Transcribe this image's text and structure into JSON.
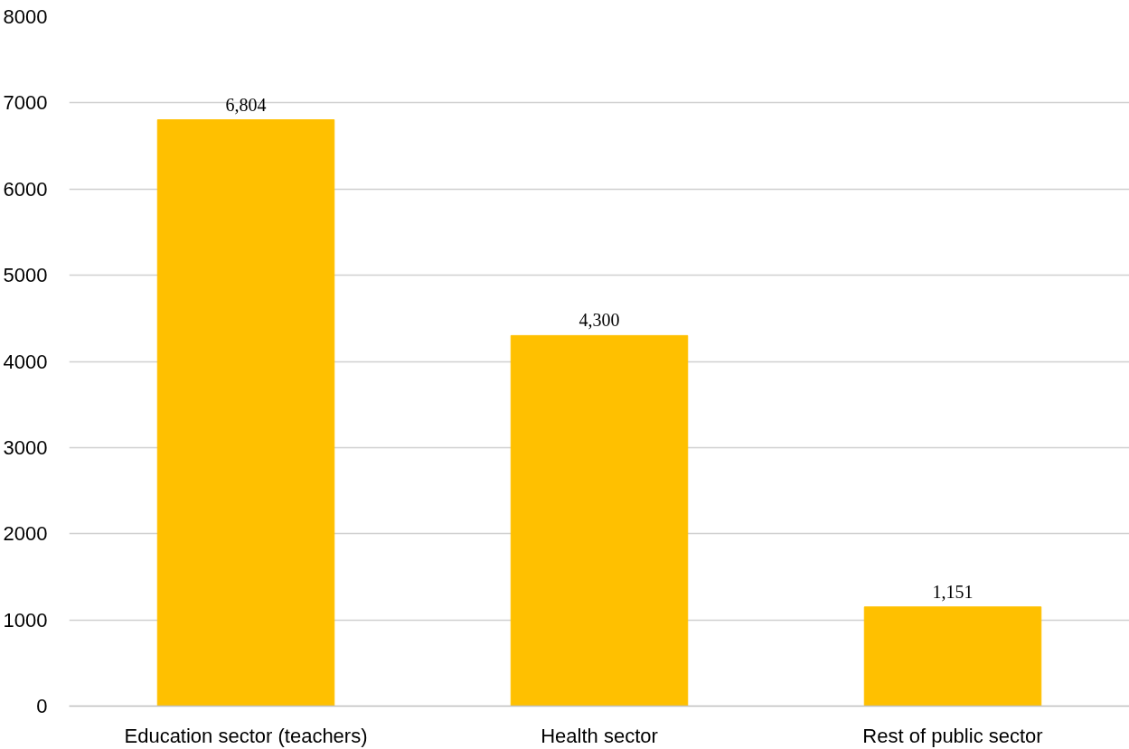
{
  "chart_data": {
    "type": "bar",
    "categories": [
      "Education sector (teachers)",
      "Health sector",
      "Rest of public sector"
    ],
    "values": [
      6804,
      4300,
      1151
    ],
    "value_labels": [
      "6,804",
      "4,300",
      "1,151"
    ],
    "color": "#ffc000",
    "ylim": [
      0,
      8000
    ],
    "yticks": [
      0,
      1000,
      2000,
      3000,
      4000,
      5000,
      6000,
      7000,
      8000
    ],
    "grid": "y"
  }
}
